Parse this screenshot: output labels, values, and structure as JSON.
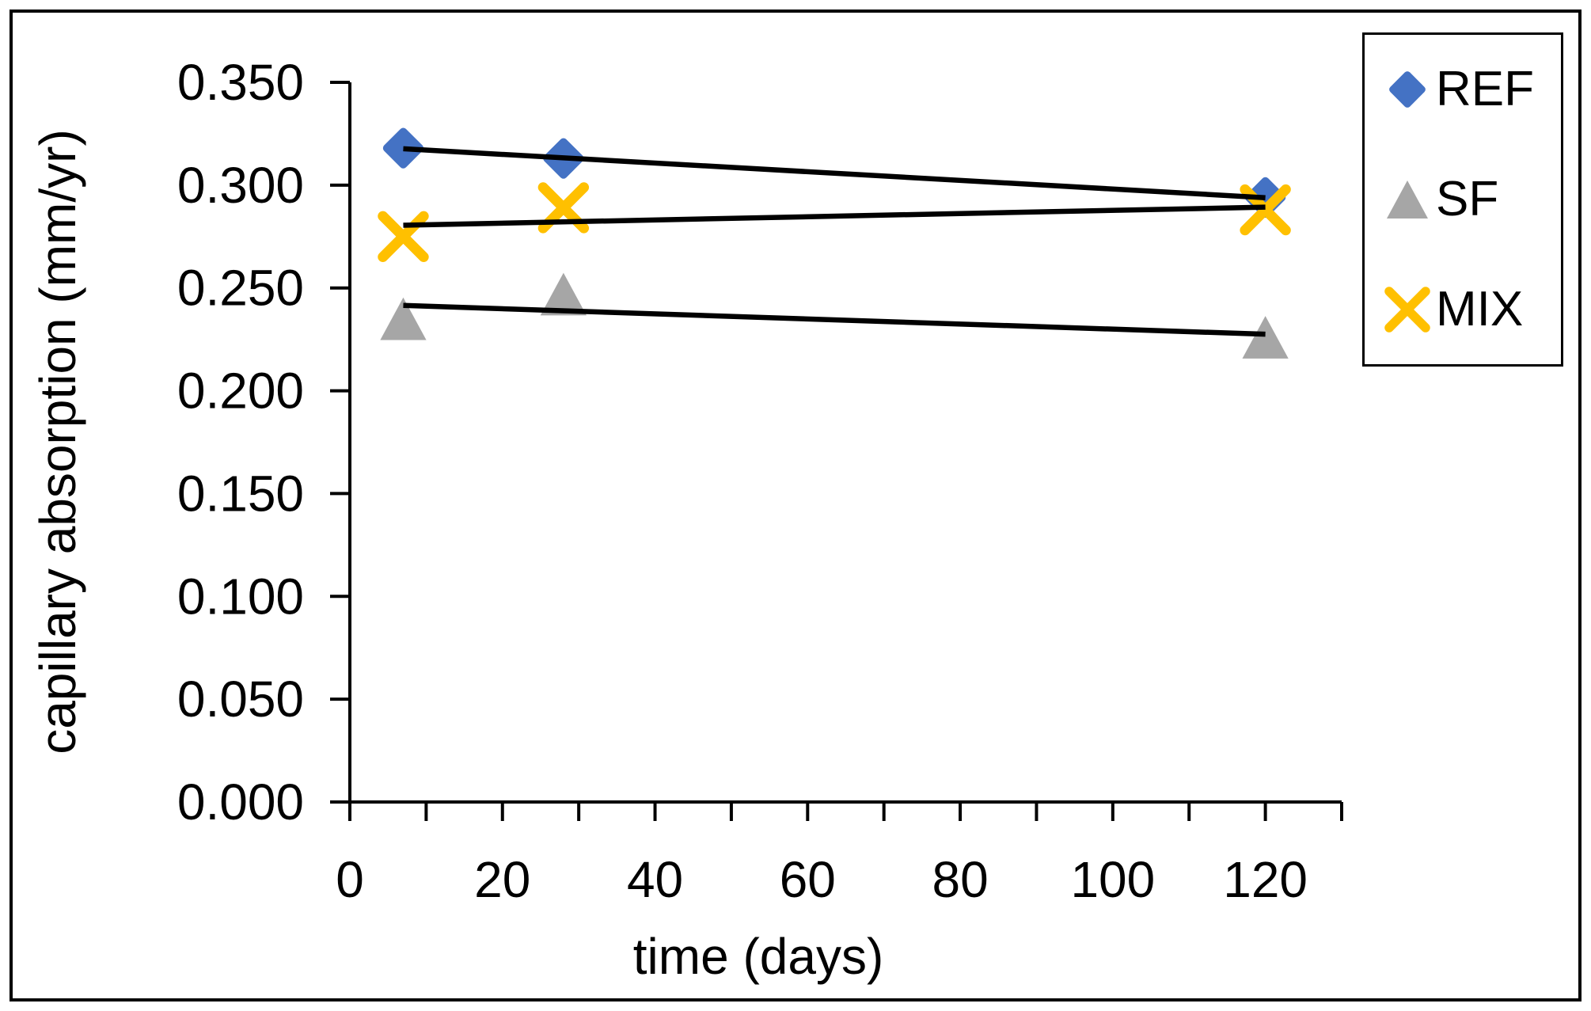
{
  "chart_data": {
    "type": "scatter",
    "title": "",
    "xlabel": "time (days)",
    "ylabel": "capillary absorption (mm/yr)",
    "xlim": [
      0,
      130
    ],
    "ylim": [
      0,
      0.35
    ],
    "grid": false,
    "x_major_ticks": [
      0,
      20,
      40,
      60,
      80,
      100,
      120
    ],
    "x_major_tick_labels": [
      "0",
      "20",
      "40",
      "60",
      "80",
      "100",
      "120"
    ],
    "x_minor_tick_step": 10,
    "y_tick_values": [
      0.0,
      0.05,
      0.1,
      0.15,
      0.2,
      0.25,
      0.3,
      0.35
    ],
    "y_tick_labels": [
      "0.000",
      "0.050",
      "0.100",
      "0.150",
      "0.200",
      "0.250",
      "0.300",
      "0.350"
    ],
    "trendline_color": "#000000",
    "series": [
      {
        "name": "REF",
        "marker": "diamond",
        "color": "#4472C4",
        "x": [
          7,
          28,
          120
        ],
        "y": [
          0.318,
          0.313,
          0.294
        ],
        "trendline": {
          "x": [
            7,
            120
          ],
          "y": [
            0.3177,
            0.2939
          ]
        }
      },
      {
        "name": "SF",
        "marker": "triangle",
        "color": "#A6A6A6",
        "x": [
          7,
          28,
          120
        ],
        "y": [
          0.235,
          0.247,
          0.226
        ],
        "trendline": {
          "x": [
            7,
            120
          ],
          "y": [
            0.2415,
            0.2275
          ]
        }
      },
      {
        "name": "MIX",
        "marker": "x",
        "color": "#FFC000",
        "x": [
          7,
          28,
          120
        ],
        "y": [
          0.275,
          0.289,
          0.288
        ],
        "trendline": {
          "x": [
            7,
            120
          ],
          "y": [
            0.2805,
            0.2893
          ]
        }
      }
    ],
    "legend": {
      "position": "top-right",
      "entries": [
        "REF",
        "SF",
        "MIX"
      ]
    }
  }
}
